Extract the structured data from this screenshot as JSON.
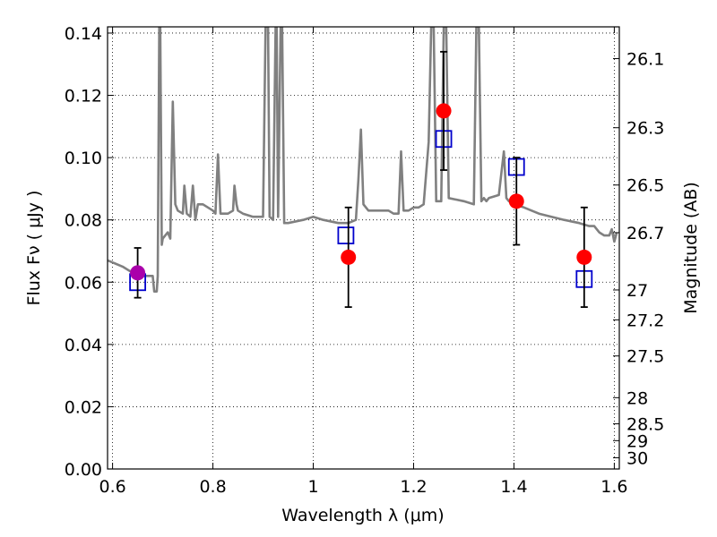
{
  "chart_data": {
    "type": "scatter",
    "xlabel": "Wavelength  λ (μm)",
    "ylabel": "Flux  Fν  ( μJy )",
    "ylabel_right": "Magnitude (AB)",
    "xlim": [
      0.59,
      1.61
    ],
    "ylim": [
      0.0,
      0.142
    ],
    "x_ticks": [
      0.6,
      0.8,
      1.0,
      1.2,
      1.4,
      1.6
    ],
    "x_tick_labels": [
      "0.6",
      "0.8",
      "1",
      "1.2",
      "1.4",
      "1.6"
    ],
    "y_ticks": [
      0.0,
      0.02,
      0.04,
      0.06,
      0.08,
      0.1,
      0.12,
      0.14
    ],
    "y_tick_labels": [
      "0.00",
      "0.02",
      "0.04",
      "0.06",
      "0.08",
      "0.10",
      "0.12",
      "0.14"
    ],
    "right_ticks": [
      {
        "label": "26.1",
        "flux": 0.1318
      },
      {
        "label": "26.3",
        "flux": 0.1096
      },
      {
        "label": "26.5",
        "flux": 0.0912
      },
      {
        "label": "26.7",
        "flux": 0.0759
      },
      {
        "label": "27",
        "flux": 0.0575
      },
      {
        "label": "27.2",
        "flux": 0.0479
      },
      {
        "label": "27.5",
        "flux": 0.0363
      },
      {
        "label": "28",
        "flux": 0.0229
      },
      {
        "label": "28.5",
        "flux": 0.0145
      },
      {
        "label": "29",
        "flux": 0.0091
      },
      {
        "label": "30",
        "flux": 0.0036
      }
    ],
    "grid": true,
    "series": [
      {
        "kind": "line",
        "color": "#808080",
        "x": [
          0.59,
          0.62,
          0.64,
          0.655,
          0.67,
          0.68,
          0.683,
          0.688,
          0.69,
          0.693,
          0.695,
          0.698,
          0.7,
          0.705,
          0.71,
          0.715,
          0.72,
          0.725,
          0.73,
          0.74,
          0.743,
          0.748,
          0.755,
          0.76,
          0.765,
          0.77,
          0.78,
          0.79,
          0.8,
          0.805,
          0.81,
          0.815,
          0.83,
          0.84,
          0.843,
          0.847,
          0.85,
          0.86,
          0.88,
          0.9,
          0.905,
          0.91,
          0.913,
          0.92,
          0.925,
          0.927,
          0.93,
          0.935,
          0.938,
          0.942,
          0.95,
          0.98,
          1.0,
          1.02,
          1.05,
          1.07,
          1.085,
          1.09,
          1.095,
          1.1,
          1.11,
          1.13,
          1.15,
          1.16,
          1.17,
          1.175,
          1.18,
          1.19,
          1.2,
          1.21,
          1.22,
          1.23,
          1.235,
          1.24,
          1.245,
          1.255,
          1.26,
          1.265,
          1.27,
          1.3,
          1.32,
          1.325,
          1.33,
          1.335,
          1.34,
          1.345,
          1.35,
          1.37,
          1.38,
          1.385,
          1.39,
          1.4,
          1.42,
          1.45,
          1.5,
          1.53,
          1.55,
          1.56,
          1.57,
          1.58,
          1.59,
          1.595,
          1.6,
          1.605
        ],
        "y": [
          0.067,
          0.065,
          0.063,
          0.062,
          0.062,
          0.062,
          0.057,
          0.057,
          0.062,
          0.142,
          0.142,
          0.072,
          0.074,
          0.075,
          0.076,
          0.074,
          0.118,
          0.085,
          0.083,
          0.082,
          0.091,
          0.082,
          0.081,
          0.091,
          0.08,
          0.085,
          0.085,
          0.084,
          0.083,
          0.082,
          0.101,
          0.082,
          0.082,
          0.083,
          0.091,
          0.085,
          0.083,
          0.082,
          0.081,
          0.081,
          0.142,
          0.142,
          0.081,
          0.08,
          0.142,
          0.142,
          0.081,
          0.142,
          0.142,
          0.079,
          0.079,
          0.08,
          0.081,
          0.08,
          0.079,
          0.079,
          0.08,
          0.093,
          0.109,
          0.085,
          0.083,
          0.083,
          0.083,
          0.082,
          0.082,
          0.102,
          0.083,
          0.083,
          0.084,
          0.084,
          0.085,
          0.105,
          0.142,
          0.142,
          0.086,
          0.086,
          0.142,
          0.142,
          0.087,
          0.086,
          0.085,
          0.142,
          0.142,
          0.086,
          0.087,
          0.086,
          0.087,
          0.088,
          0.102,
          0.087,
          0.086,
          0.085,
          0.084,
          0.082,
          0.08,
          0.079,
          0.078,
          0.078,
          0.076,
          0.075,
          0.075,
          0.077,
          0.073,
          0.076
        ]
      },
      {
        "kind": "open-squares",
        "color": "#0000cc",
        "x": [
          0.65,
          1.065,
          1.26,
          1.405,
          1.54
        ],
        "y": [
          0.06,
          0.075,
          0.106,
          0.097,
          0.061
        ]
      },
      {
        "kind": "points-with-error-bars",
        "color": "#ff0000",
        "x": [
          1.07,
          1.26,
          1.405,
          1.54
        ],
        "y": [
          0.068,
          0.115,
          0.086,
          0.068
        ],
        "yerr": [
          0.016,
          0.019,
          0.014,
          0.016
        ]
      },
      {
        "kind": "points-with-error-bars",
        "color": "#aa00aa",
        "x": [
          0.65
        ],
        "y": [
          0.063
        ],
        "yerr": [
          0.008
        ]
      }
    ]
  }
}
